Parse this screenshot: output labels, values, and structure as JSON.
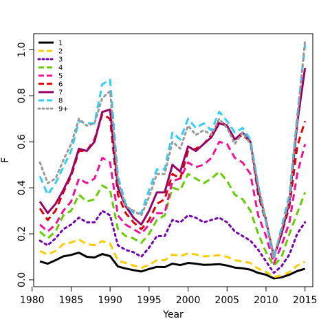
{
  "chart_data": {
    "type": "line",
    "xlabel": "Year",
    "ylabel": "F",
    "xlim": [
      1980.2,
      2016.0
    ],
    "ylim": [
      -0.03,
      1.07
    ],
    "xticks": [
      1980,
      1985,
      1990,
      1995,
      2000,
      2005,
      2010,
      2015
    ],
    "yticks": [
      0.0,
      0.2,
      0.4,
      0.6,
      0.8,
      1.0
    ],
    "ytick_labels": [
      "0.0",
      "0.2",
      "0.4",
      "0.6",
      "0.8",
      "1.0"
    ],
    "grid": false,
    "legend_position": "top-left",
    "x": [
      1981,
      1982,
      1983,
      1984,
      1985,
      1986,
      1987,
      1988,
      1989,
      1990,
      1991,
      1992,
      1993,
      1994,
      1995,
      1996,
      1997,
      1998,
      1999,
      2000,
      2001,
      2002,
      2003,
      2004,
      2005,
      2006,
      2007,
      2008,
      2009,
      2010,
      2011,
      2012,
      2013,
      2014,
      2015
    ],
    "series": [
      {
        "name": "1",
        "color": "#000000",
        "dash": "solid",
        "values": [
          0.08,
          0.07,
          0.085,
          0.102,
          0.108,
          0.118,
          0.1,
          0.097,
          0.112,
          0.103,
          0.058,
          0.049,
          0.042,
          0.036,
          0.047,
          0.056,
          0.055,
          0.07,
          0.064,
          0.073,
          0.07,
          0.065,
          0.066,
          0.068,
          0.062,
          0.053,
          0.05,
          0.044,
          0.03,
          0.022,
          0.006,
          0.011,
          0.022,
          0.038,
          0.048
        ]
      },
      {
        "name": "2",
        "color": "#ffcc00",
        "dash": "dashed",
        "values": [
          0.125,
          0.11,
          0.125,
          0.155,
          0.162,
          0.175,
          0.155,
          0.15,
          0.168,
          0.158,
          0.083,
          0.073,
          0.062,
          0.052,
          0.065,
          0.085,
          0.085,
          0.11,
          0.103,
          0.115,
          0.11,
          0.102,
          0.103,
          0.107,
          0.1,
          0.085,
          0.08,
          0.073,
          0.048,
          0.035,
          0.012,
          0.018,
          0.033,
          0.062,
          0.078
        ]
      },
      {
        "name": "3",
        "color": "#7300a8",
        "dash": "dotted",
        "values": [
          0.17,
          0.15,
          0.18,
          0.22,
          0.24,
          0.27,
          0.25,
          0.25,
          0.3,
          0.28,
          0.15,
          0.13,
          0.12,
          0.1,
          0.14,
          0.19,
          0.19,
          0.26,
          0.25,
          0.28,
          0.27,
          0.25,
          0.26,
          0.27,
          0.25,
          0.21,
          0.19,
          0.17,
          0.13,
          0.08,
          0.03,
          0.06,
          0.11,
          0.2,
          0.25
        ]
      },
      {
        "name": "4",
        "color": "#66cc00",
        "dash": "dashed",
        "values": [
          0.21,
          0.18,
          0.21,
          0.28,
          0.3,
          0.37,
          0.34,
          0.35,
          0.41,
          0.39,
          0.22,
          0.19,
          0.18,
          0.16,
          0.2,
          0.26,
          0.28,
          0.4,
          0.39,
          0.46,
          0.44,
          0.42,
          0.44,
          0.47,
          0.43,
          0.37,
          0.35,
          0.3,
          0.2,
          0.12,
          0.06,
          0.1,
          0.2,
          0.29,
          0.38
        ]
      },
      {
        "name": "5",
        "color": "#ee1199",
        "dash": "dashed",
        "values": [
          0.24,
          0.21,
          0.24,
          0.3,
          0.34,
          0.44,
          0.42,
          0.44,
          0.53,
          0.51,
          0.28,
          0.24,
          0.22,
          0.2,
          0.24,
          0.29,
          0.29,
          0.43,
          0.44,
          0.51,
          0.49,
          0.5,
          0.53,
          0.6,
          0.59,
          0.53,
          0.51,
          0.46,
          0.28,
          0.19,
          0.07,
          0.15,
          0.25,
          0.46,
          0.59
        ]
      },
      {
        "name": "6",
        "color": "#dd0000",
        "dash": "dashed",
        "values": [
          0.31,
          0.26,
          0.3,
          0.38,
          0.45,
          0.56,
          0.56,
          0.61,
          0.72,
          0.7,
          0.37,
          0.29,
          0.25,
          0.22,
          0.26,
          0.33,
          0.35,
          0.46,
          0.44,
          0.56,
          0.57,
          0.59,
          0.63,
          0.69,
          0.67,
          0.61,
          0.63,
          0.6,
          0.37,
          0.25,
          0.1,
          0.2,
          0.32,
          0.58,
          0.69
        ]
      },
      {
        "name": "7",
        "color": "#990066",
        "dash": "solid",
        "values": [
          0.34,
          0.29,
          0.33,
          0.39,
          0.46,
          0.57,
          0.56,
          0.6,
          0.73,
          0.74,
          0.4,
          0.32,
          0.27,
          0.24,
          0.3,
          0.38,
          0.38,
          0.5,
          0.47,
          0.58,
          0.56,
          0.59,
          0.62,
          0.68,
          0.67,
          0.61,
          0.64,
          0.6,
          0.39,
          0.26,
          0.1,
          0.2,
          0.34,
          0.68,
          0.92
        ]
      },
      {
        "name": "8",
        "color": "#33ccff",
        "dash": "dashed",
        "values": [
          0.45,
          0.37,
          0.42,
          0.49,
          0.56,
          0.69,
          0.68,
          0.68,
          0.85,
          0.87,
          0.45,
          0.33,
          0.29,
          0.29,
          0.39,
          0.48,
          0.48,
          0.64,
          0.61,
          0.7,
          0.66,
          0.68,
          0.65,
          0.73,
          0.69,
          0.64,
          0.66,
          0.61,
          0.41,
          0.25,
          0.09,
          0.23,
          0.37,
          0.71,
          1.02
        ]
      },
      {
        "name": "9+",
        "color": "#999999",
        "dash": "dotted",
        "values": [
          0.51,
          0.42,
          0.44,
          0.52,
          0.59,
          0.7,
          0.67,
          0.68,
          0.79,
          0.82,
          0.43,
          0.32,
          0.3,
          0.28,
          0.36,
          0.46,
          0.46,
          0.6,
          0.57,
          0.67,
          0.63,
          0.65,
          0.63,
          0.7,
          0.66,
          0.59,
          0.64,
          0.59,
          0.41,
          0.26,
          0.1,
          0.22,
          0.35,
          0.7,
          1.04
        ]
      }
    ]
  }
}
